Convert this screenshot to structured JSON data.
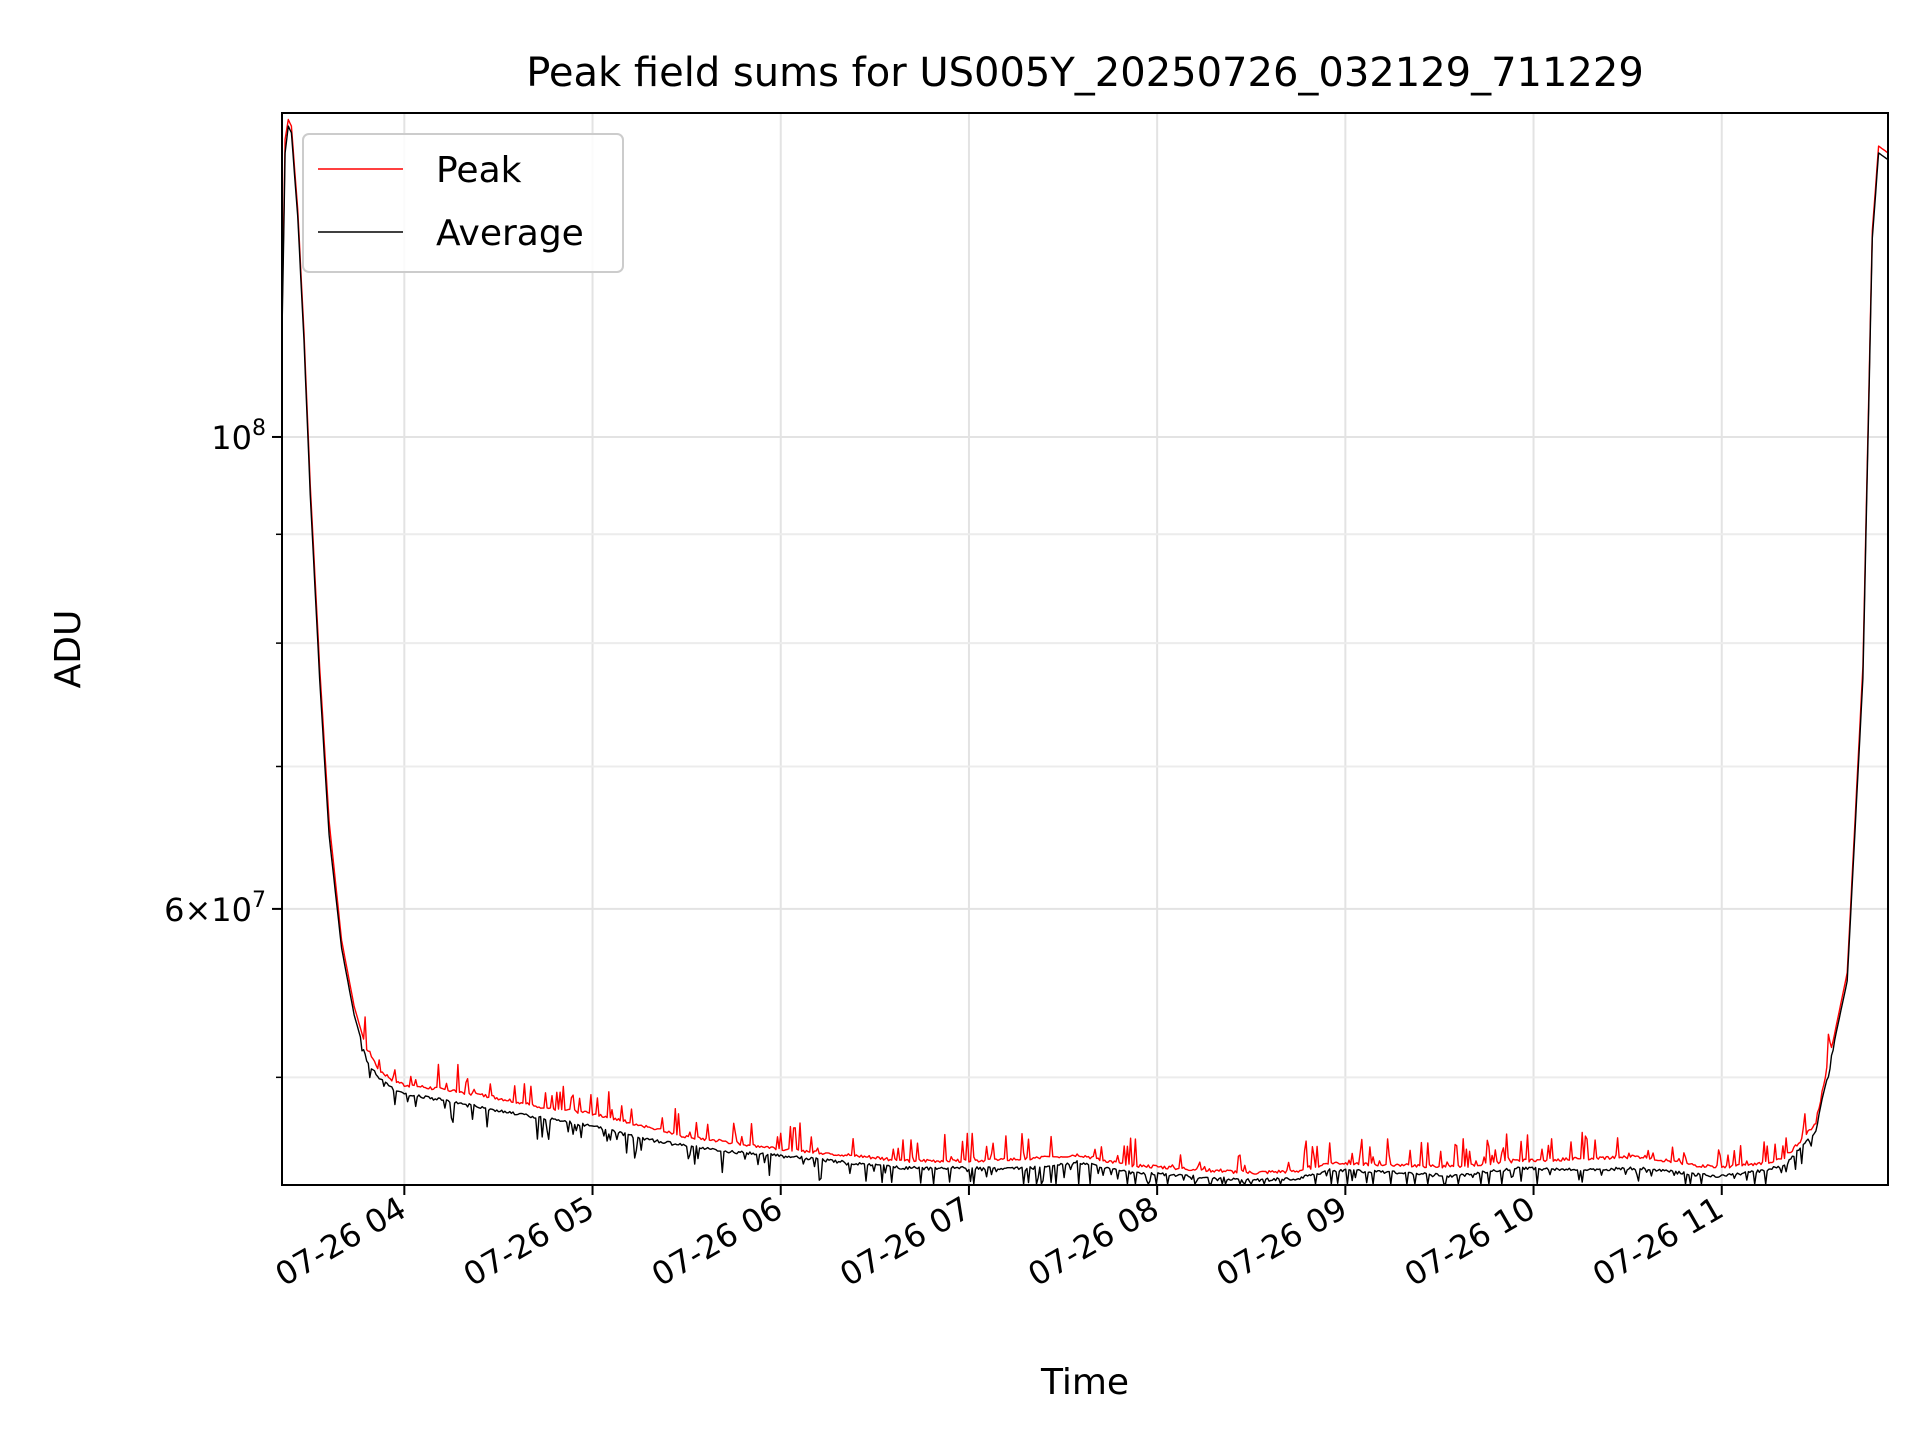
{
  "chart_data": {
    "type": "line",
    "title": "Peak field sums for US005Y_20250726_032129_711229",
    "xlabel": "Time",
    "ylabel": "ADU",
    "yscale": "log",
    "xlim": [
      "2025-07-26 03:21",
      "2025-07-26 11:53"
    ],
    "ylim": [
      44500000,
      142000000
    ],
    "x_ticks": [
      "07-26 04",
      "07-26 05",
      "07-26 06",
      "07-26 07",
      "07-26 08",
      "07-26 09",
      "07-26 10",
      "07-26 11"
    ],
    "y_ticks": [
      {
        "value": 100000000,
        "base": "10",
        "exp": "8",
        "mant": ""
      },
      {
        "value": 60000000,
        "base": "10",
        "exp": "7",
        "mant": "6×"
      }
    ],
    "grid": true,
    "legend": {
      "position": "upper left",
      "entries": [
        "Peak",
        "Average"
      ]
    },
    "series": [
      {
        "name": "Peak",
        "color": "#ff0000",
        "x": [
          "2025-07-26 03:21",
          "2025-07-26 03:22",
          "2025-07-26 03:23",
          "2025-07-26 03:24",
          "2025-07-26 03:26",
          "2025-07-26 03:28",
          "2025-07-26 03:30",
          "2025-07-26 03:33",
          "2025-07-26 03:36",
          "2025-07-26 03:40",
          "2025-07-26 03:44",
          "2025-07-26 03:48",
          "2025-07-26 03:52",
          "2025-07-26 03:56",
          "2025-07-26 04:00",
          "2025-07-26 04:15",
          "2025-07-26 04:30",
          "2025-07-26 04:45",
          "2025-07-26 05:00",
          "2025-07-26 05:15",
          "2025-07-26 05:30",
          "2025-07-26 05:45",
          "2025-07-26 06:00",
          "2025-07-26 06:20",
          "2025-07-26 06:40",
          "2025-07-26 07:00",
          "2025-07-26 07:20",
          "2025-07-26 07:35",
          "2025-07-26 07:50",
          "2025-07-26 08:10",
          "2025-07-26 08:30",
          "2025-07-26 08:45",
          "2025-07-26 08:55",
          "2025-07-26 09:15",
          "2025-07-26 09:35",
          "2025-07-26 09:55",
          "2025-07-26 10:15",
          "2025-07-26 10:35",
          "2025-07-26 10:50",
          "2025-07-26 11:00",
          "2025-07-26 11:10",
          "2025-07-26 11:20",
          "2025-07-26 11:30",
          "2025-07-26 11:40",
          "2025-07-26 11:45",
          "2025-07-26 11:48",
          "2025-07-26 11:50",
          "2025-07-26 11:53"
        ],
        "values": [
          114000000,
          138000000,
          141000000,
          140000000,
          128000000,
          112000000,
          95000000,
          78000000,
          66000000,
          58000000,
          54000000,
          51500000,
          50300000,
          49800000,
          49500000,
          49200000,
          48800000,
          48300000,
          48000000,
          47400000,
          46800000,
          46500000,
          46200000,
          45900000,
          45600000,
          45600000,
          45700000,
          45900000,
          45400000,
          45200000,
          45000000,
          45100000,
          45500000,
          45400000,
          45300000,
          45600000,
          45700000,
          45800000,
          45400000,
          45300000,
          45400000,
          45700000,
          47500000,
          56000000,
          78000000,
          125000000,
          137000000,
          136000000
        ]
      },
      {
        "name": "Average",
        "color": "#000000",
        "x": [
          "2025-07-26 03:21",
          "2025-07-26 03:22",
          "2025-07-26 03:23",
          "2025-07-26 03:24",
          "2025-07-26 03:26",
          "2025-07-26 03:28",
          "2025-07-26 03:30",
          "2025-07-26 03:33",
          "2025-07-26 03:36",
          "2025-07-26 03:40",
          "2025-07-26 03:44",
          "2025-07-26 03:48",
          "2025-07-26 03:52",
          "2025-07-26 03:56",
          "2025-07-26 04:00",
          "2025-07-26 04:15",
          "2025-07-26 04:30",
          "2025-07-26 04:45",
          "2025-07-26 05:00",
          "2025-07-26 05:15",
          "2025-07-26 05:30",
          "2025-07-26 05:45",
          "2025-07-26 06:00",
          "2025-07-26 06:20",
          "2025-07-26 06:40",
          "2025-07-26 07:00",
          "2025-07-26 07:20",
          "2025-07-26 07:35",
          "2025-07-26 07:50",
          "2025-07-26 08:10",
          "2025-07-26 08:30",
          "2025-07-26 08:45",
          "2025-07-26 08:55",
          "2025-07-26 09:15",
          "2025-07-26 09:35",
          "2025-07-26 09:55",
          "2025-07-26 10:15",
          "2025-07-26 10:35",
          "2025-07-26 10:50",
          "2025-07-26 11:00",
          "2025-07-26 11:10",
          "2025-07-26 11:20",
          "2025-07-26 11:30",
          "2025-07-26 11:40",
          "2025-07-26 11:45",
          "2025-07-26 11:48",
          "2025-07-26 11:50",
          "2025-07-26 11:53"
        ],
        "values": [
          112000000,
          136000000,
          140000000,
          139000000,
          127000000,
          111000000,
          94000000,
          77000000,
          65000000,
          57500000,
          53500000,
          51000000,
          50000000,
          49500000,
          49200000,
          48800000,
          48300000,
          47900000,
          47500000,
          46900000,
          46500000,
          46200000,
          46000000,
          45700000,
          45400000,
          45400000,
          45400000,
          45700000,
          45200000,
          45000000,
          44800000,
          44900000,
          45300000,
          45200000,
          45000000,
          45400000,
          45300000,
          45400000,
          45100000,
          45000000,
          45200000,
          45500000,
          47300000,
          55500000,
          77000000,
          124000000,
          136000000,
          135000000
        ]
      }
    ]
  }
}
